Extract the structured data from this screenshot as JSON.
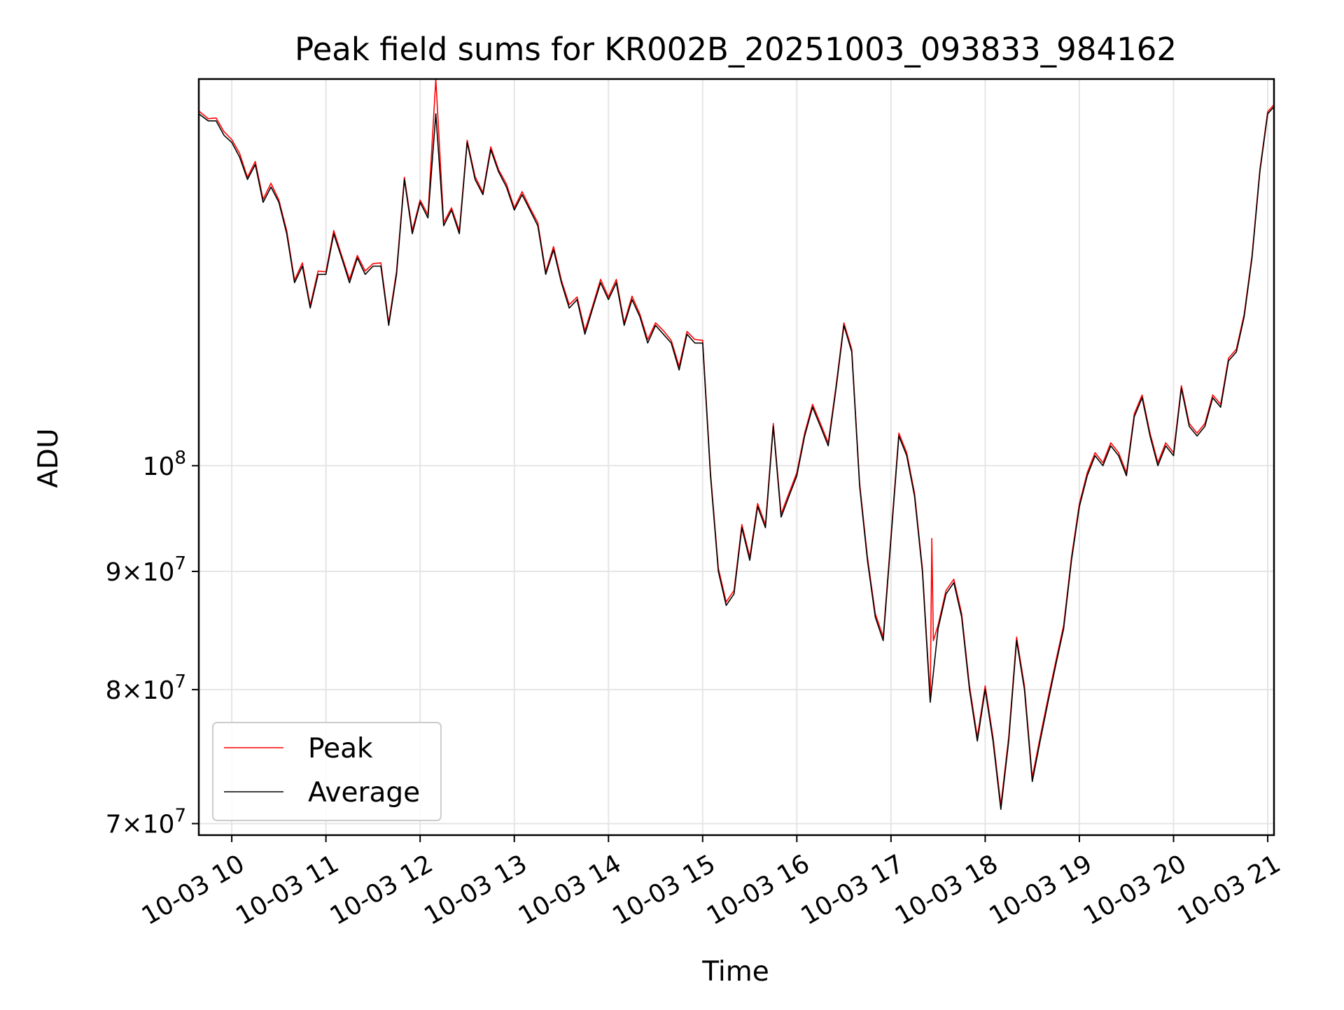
{
  "chart_data": {
    "type": "line",
    "title": "Peak field sums for KR002B_20251003_093833_984162",
    "xlabel": "Time",
    "ylabel": "ADU",
    "y_scale": "log",
    "ylim": [
      69200000,
      147000000
    ],
    "xlim": [
      "2025-10-03 09:39",
      "2025-10-03 21:04"
    ],
    "grid": true,
    "legend": {
      "placement": "lower-left",
      "entries": [
        "Peak",
        "Average"
      ]
    },
    "colors": {
      "Peak": "#ff0000",
      "Average": "#000000",
      "grid": "#e5e5e5"
    },
    "x_ticks": [
      {
        "t": "2025-10-03 10:00",
        "label": "10-03 10"
      },
      {
        "t": "2025-10-03 11:00",
        "label": "10-03 11"
      },
      {
        "t": "2025-10-03 12:00",
        "label": "10-03 12"
      },
      {
        "t": "2025-10-03 13:00",
        "label": "10-03 13"
      },
      {
        "t": "2025-10-03 14:00",
        "label": "10-03 14"
      },
      {
        "t": "2025-10-03 15:00",
        "label": "10-03 15"
      },
      {
        "t": "2025-10-03 16:00",
        "label": "10-03 16"
      },
      {
        "t": "2025-10-03 17:00",
        "label": "10-03 17"
      },
      {
        "t": "2025-10-03 18:00",
        "label": "10-03 18"
      },
      {
        "t": "2025-10-03 19:00",
        "label": "10-03 19"
      },
      {
        "t": "2025-10-03 20:00",
        "label": "10-03 20"
      },
      {
        "t": "2025-10-03 21:00",
        "label": "10-03 21"
      }
    ],
    "y_ticks": [
      {
        "value": 70000000,
        "mantissa": "7",
        "label": "7×10^7"
      },
      {
        "value": 80000000,
        "mantissa": "8",
        "label": "8×10^7"
      },
      {
        "value": 90000000,
        "mantissa": "9",
        "label": "9×10^7"
      },
      {
        "value": 100000000,
        "mantissa": "",
        "label": "10^8"
      }
    ],
    "series": [
      {
        "name": "Average",
        "x": [
          "2025-10-03 09:39",
          "2025-10-03 09:45",
          "2025-10-03 09:50",
          "2025-10-03 09:55",
          "2025-10-03 10:00",
          "2025-10-03 10:05",
          "2025-10-03 10:10",
          "2025-10-03 10:15",
          "2025-10-03 10:20",
          "2025-10-03 10:25",
          "2025-10-03 10:30",
          "2025-10-03 10:35",
          "2025-10-03 10:40",
          "2025-10-03 10:45",
          "2025-10-03 10:50",
          "2025-10-03 10:55",
          "2025-10-03 11:00",
          "2025-10-03 11:05",
          "2025-10-03 11:10",
          "2025-10-03 11:15",
          "2025-10-03 11:20",
          "2025-10-03 11:25",
          "2025-10-03 11:30",
          "2025-10-03 11:35",
          "2025-10-03 11:40",
          "2025-10-03 11:45",
          "2025-10-03 11:50",
          "2025-10-03 11:55",
          "2025-10-03 12:00",
          "2025-10-03 12:05",
          "2025-10-03 12:10",
          "2025-10-03 12:15",
          "2025-10-03 12:20",
          "2025-10-03 12:25",
          "2025-10-03 12:30",
          "2025-10-03 12:35",
          "2025-10-03 12:40",
          "2025-10-03 12:45",
          "2025-10-03 12:50",
          "2025-10-03 12:55",
          "2025-10-03 13:00",
          "2025-10-03 13:05",
          "2025-10-03 13:10",
          "2025-10-03 13:15",
          "2025-10-03 13:20",
          "2025-10-03 13:25",
          "2025-10-03 13:30",
          "2025-10-03 13:35",
          "2025-10-03 13:40",
          "2025-10-03 13:45",
          "2025-10-03 13:50",
          "2025-10-03 13:55",
          "2025-10-03 14:00",
          "2025-10-03 14:05",
          "2025-10-03 14:10",
          "2025-10-03 14:15",
          "2025-10-03 14:20",
          "2025-10-03 14:25",
          "2025-10-03 14:30",
          "2025-10-03 14:35",
          "2025-10-03 14:40",
          "2025-10-03 14:45",
          "2025-10-03 14:50",
          "2025-10-03 14:55",
          "2025-10-03 15:00",
          "2025-10-03 15:05",
          "2025-10-03 15:10",
          "2025-10-03 15:15",
          "2025-10-03 15:20",
          "2025-10-03 15:25",
          "2025-10-03 15:30",
          "2025-10-03 15:35",
          "2025-10-03 15:40",
          "2025-10-03 15:45",
          "2025-10-03 15:50",
          "2025-10-03 15:55",
          "2025-10-03 16:00",
          "2025-10-03 16:05",
          "2025-10-03 16:10",
          "2025-10-03 16:15",
          "2025-10-03 16:20",
          "2025-10-03 16:25",
          "2025-10-03 16:30",
          "2025-10-03 16:35",
          "2025-10-03 16:40",
          "2025-10-03 16:45",
          "2025-10-03 16:50",
          "2025-10-03 16:55",
          "2025-10-03 17:00",
          "2025-10-03 17:05",
          "2025-10-03 17:10",
          "2025-10-03 17:15",
          "2025-10-03 17:20",
          "2025-10-03 17:25",
          "2025-10-03 17:30",
          "2025-10-03 17:35",
          "2025-10-03 17:40",
          "2025-10-03 17:45",
          "2025-10-03 17:50",
          "2025-10-03 17:55",
          "2025-10-03 18:00",
          "2025-10-03 18:05",
          "2025-10-03 18:10",
          "2025-10-03 18:15",
          "2025-10-03 18:20",
          "2025-10-03 18:25",
          "2025-10-03 18:30",
          "2025-10-03 18:35",
          "2025-10-03 18:40",
          "2025-10-03 18:45",
          "2025-10-03 18:50",
          "2025-10-03 18:55",
          "2025-10-03 19:00",
          "2025-10-03 19:05",
          "2025-10-03 19:10",
          "2025-10-03 19:15",
          "2025-10-03 19:20",
          "2025-10-03 19:25",
          "2025-10-03 19:30",
          "2025-10-03 19:35",
          "2025-10-03 19:40",
          "2025-10-03 19:45",
          "2025-10-03 19:50",
          "2025-10-03 19:55",
          "2025-10-03 20:00",
          "2025-10-03 20:05",
          "2025-10-03 20:10",
          "2025-10-03 20:15",
          "2025-10-03 20:20",
          "2025-10-03 20:25",
          "2025-10-03 20:30",
          "2025-10-03 20:35",
          "2025-10-03 20:40",
          "2025-10-03 20:45",
          "2025-10-03 20:50",
          "2025-10-03 20:55",
          "2025-10-03 21:00",
          "2025-10-03 21:04"
        ],
        "values": [
          142000000.0,
          141000000.0,
          141000000.0,
          139000000.0,
          138000000.0,
          136000000.0,
          133000000.0,
          135000000.0,
          130000000.0,
          132000000.0,
          130000000.0,
          126000000.0,
          120000000.0,
          122000000.0,
          117000000.0,
          121000000.0,
          121000000.0,
          126000000.0,
          123000000.0,
          120000000.0,
          123000000.0,
          121000000.0,
          122000000.0,
          122000000.0,
          115000000.0,
          121000000.0,
          133000000.0,
          126000000.0,
          130000000.0,
          128000000.0,
          142000000.0,
          127000000.0,
          129000000.0,
          126000000.0,
          138000000.0,
          133000000.0,
          131000000.0,
          137000000.0,
          134000000.0,
          132000000.0,
          129000000.0,
          131000000.0,
          129000000.0,
          127000000.0,
          121000000.0,
          124000000.0,
          120000000.0,
          117000000.0,
          118000000.0,
          114000000.0,
          117000000.0,
          120000000.0,
          118000000.0,
          120000000.0,
          115000000.0,
          118000000.0,
          116000000.0,
          113000000.0,
          115000000.0,
          114000000.0,
          113000000.0,
          110000000.0,
          114000000.0,
          113000000.0,
          113000000.0,
          99000000.0,
          90000000.0,
          87000000.0,
          88000000.0,
          94000000.0,
          91000000.0,
          96000000.0,
          94000000.0,
          104000000.0,
          95000000.0,
          97000000.0,
          99000000.0,
          103000000.0,
          106000000.0,
          104000000.0,
          102000000.0,
          108000000.0,
          115000000.0,
          112000000.0,
          98000000.0,
          91000000.0,
          86000000.0,
          84000000.0,
          93000000.0,
          103000000.0,
          101000000.0,
          97000000.0,
          90000000.0,
          79000000.0,
          85000000.0,
          88000000.0,
          89000000.0,
          86000000.0,
          80000000.0,
          76000000.0,
          80000000.0,
          76000000.0,
          71000000.0,
          76000000.0,
          84000000.0,
          80000000.0,
          73000000.0,
          76000000.0,
          79000000.0,
          82000000.0,
          85000000.0,
          91000000.0,
          96000000.0,
          99000000.0,
          101000000.0,
          100000000.0,
          102000000.0,
          101000000.0,
          99000000.0,
          105000000.0,
          107000000.0,
          103000000.0,
          100000000.0,
          102000000.0,
          101000000.0,
          108000000.0,
          104000000.0,
          103000000.0,
          104000000.0,
          107000000.0,
          106000000.0,
          111000000.0,
          112000000.0,
          116000000.0,
          123000000.0,
          134000000.0,
          142000000.0,
          143000000.0
        ]
      },
      {
        "name": "Peak",
        "x": [
          "2025-10-03 09:39",
          "2025-10-03 09:45",
          "2025-10-03 09:50",
          "2025-10-03 09:55",
          "2025-10-03 10:00",
          "2025-10-03 10:05",
          "2025-10-03 10:10",
          "2025-10-03 10:15",
          "2025-10-03 10:20",
          "2025-10-03 10:25",
          "2025-10-03 10:30",
          "2025-10-03 10:35",
          "2025-10-03 10:40",
          "2025-10-03 10:45",
          "2025-10-03 10:50",
          "2025-10-03 10:55",
          "2025-10-03 11:00",
          "2025-10-03 11:05",
          "2025-10-03 11:10",
          "2025-10-03 11:15",
          "2025-10-03 11:20",
          "2025-10-03 11:25",
          "2025-10-03 11:30",
          "2025-10-03 11:35",
          "2025-10-03 11:40",
          "2025-10-03 11:45",
          "2025-10-03 11:50",
          "2025-10-03 11:55",
          "2025-10-03 12:00",
          "2025-10-03 12:05",
          "2025-10-03 12:10",
          "2025-10-03 12:15",
          "2025-10-03 12:20",
          "2025-10-03 12:25",
          "2025-10-03 12:30",
          "2025-10-03 12:35",
          "2025-10-03 12:40",
          "2025-10-03 12:45",
          "2025-10-03 12:50",
          "2025-10-03 12:55",
          "2025-10-03 13:00",
          "2025-10-03 13:05",
          "2025-10-03 13:10",
          "2025-10-03 13:15",
          "2025-10-03 13:20",
          "2025-10-03 13:25",
          "2025-10-03 13:30",
          "2025-10-03 13:35",
          "2025-10-03 13:40",
          "2025-10-03 13:45",
          "2025-10-03 13:50",
          "2025-10-03 13:55",
          "2025-10-03 14:00",
          "2025-10-03 14:05",
          "2025-10-03 14:10",
          "2025-10-03 14:15",
          "2025-10-03 14:20",
          "2025-10-03 14:25",
          "2025-10-03 14:30",
          "2025-10-03 14:35",
          "2025-10-03 14:40",
          "2025-10-03 14:45",
          "2025-10-03 14:50",
          "2025-10-03 14:55",
          "2025-10-03 15:00",
          "2025-10-03 15:05",
          "2025-10-03 15:10",
          "2025-10-03 15:15",
          "2025-10-03 15:20",
          "2025-10-03 15:25",
          "2025-10-03 15:30",
          "2025-10-03 15:35",
          "2025-10-03 15:40",
          "2025-10-03 15:45",
          "2025-10-03 15:50",
          "2025-10-03 15:55",
          "2025-10-03 16:00",
          "2025-10-03 16:05",
          "2025-10-03 16:10",
          "2025-10-03 16:15",
          "2025-10-03 16:20",
          "2025-10-03 16:25",
          "2025-10-03 16:30",
          "2025-10-03 16:35",
          "2025-10-03 16:40",
          "2025-10-03 16:45",
          "2025-10-03 16:50",
          "2025-10-03 16:55",
          "2025-10-03 17:00",
          "2025-10-03 17:05",
          "2025-10-03 17:10",
          "2025-10-03 17:15",
          "2025-10-03 17:20",
          "2025-10-03 17:25",
          "2025-10-03 17:26",
          "2025-10-03 17:27",
          "2025-10-03 17:30",
          "2025-10-03 17:35",
          "2025-10-03 17:40",
          "2025-10-03 17:45",
          "2025-10-03 17:50",
          "2025-10-03 17:55",
          "2025-10-03 18:00",
          "2025-10-03 18:05",
          "2025-10-03 18:10",
          "2025-10-03 18:15",
          "2025-10-03 18:20",
          "2025-10-03 18:25",
          "2025-10-03 18:30",
          "2025-10-03 18:35",
          "2025-10-03 18:40",
          "2025-10-03 18:45",
          "2025-10-03 18:50",
          "2025-10-03 18:55",
          "2025-10-03 19:00",
          "2025-10-03 19:05",
          "2025-10-03 19:10",
          "2025-10-03 19:15",
          "2025-10-03 19:20",
          "2025-10-03 19:25",
          "2025-10-03 19:30",
          "2025-10-03 19:35",
          "2025-10-03 19:40",
          "2025-10-03 19:45",
          "2025-10-03 19:50",
          "2025-10-03 19:55",
          "2025-10-03 20:00",
          "2025-10-03 20:05",
          "2025-10-03 20:10",
          "2025-10-03 20:15",
          "2025-10-03 20:20",
          "2025-10-03 20:25",
          "2025-10-03 20:30",
          "2025-10-03 20:35",
          "2025-10-03 20:40",
          "2025-10-03 20:45",
          "2025-10-03 20:50",
          "2025-10-03 20:55",
          "2025-10-03 21:00",
          "2025-10-03 21:04"
        ],
        "values": [
          142400000.0,
          141300000.0,
          141400000.0,
          139500000.0,
          138400000.0,
          136500000.0,
          133300000.0,
          135400000.0,
          130400000.0,
          132500000.0,
          130300000.0,
          126400000.0,
          120300000.0,
          122400000.0,
          117300000.0,
          121400000.0,
          121300000.0,
          126400000.0,
          123300000.0,
          120400000.0,
          123300000.0,
          121400000.0,
          122300000.0,
          122400000.0,
          115300000.0,
          121400000.0,
          133300000.0,
          126400000.0,
          130300000.0,
          128400000.0,
          147000000.0,
          127400000.0,
          129300000.0,
          126400000.0,
          138300000.0,
          133400000.0,
          131300000.0,
          137400000.0,
          134300000.0,
          132400000.0,
          129300000.0,
          131400000.0,
          129300000.0,
          127400000.0,
          121300000.0,
          124400000.0,
          120300000.0,
          117400000.0,
          118300000.0,
          114400000.0,
          117300000.0,
          120400000.0,
          118300000.0,
          120400000.0,
          115300000.0,
          118400000.0,
          116300000.0,
          113400000.0,
          115300000.0,
          114400000.0,
          113300000.0,
          110400000.0,
          114300000.0,
          113400000.0,
          113300000.0,
          99300000.0,
          90300000.0,
          87300000.0,
          88300000.0,
          94300000.0,
          91300000.0,
          96300000.0,
          94300000.0,
          104300000.0,
          95300000.0,
          97300000.0,
          99300000.0,
          103300000.0,
          106300000.0,
          104300000.0,
          102300000.0,
          108300000.0,
          115300000.0,
          112300000.0,
          98300000.0,
          91300000.0,
          86300000.0,
          84300000.0,
          93300000.0,
          103300000.0,
          101300000.0,
          97300000.0,
          90300000.0,
          79300000.0,
          93000000.0,
          84000000.0,
          85300000.0,
          88300000.0,
          89300000.0,
          86300000.0,
          80300000.0,
          76300000.0,
          80300000.0,
          76300000.0,
          71300000.0,
          76300000.0,
          84300000.0,
          80300000.0,
          73300000.0,
          76300000.0,
          79300000.0,
          82300000.0,
          85300000.0,
          91300000.0,
          96300000.0,
          99300000.0,
          101300000.0,
          100300000.0,
          102300000.0,
          101300000.0,
          99300000.0,
          105300000.0,
          107300000.0,
          103300000.0,
          100300000.0,
          102300000.0,
          101300000.0,
          108300000.0,
          104300000.0,
          103300000.0,
          104300000.0,
          107300000.0,
          106300000.0,
          111300000.0,
          112300000.0,
          116300000.0,
          123300000.0,
          134300000.0,
          142300000.0,
          143300000.0
        ]
      }
    ]
  }
}
